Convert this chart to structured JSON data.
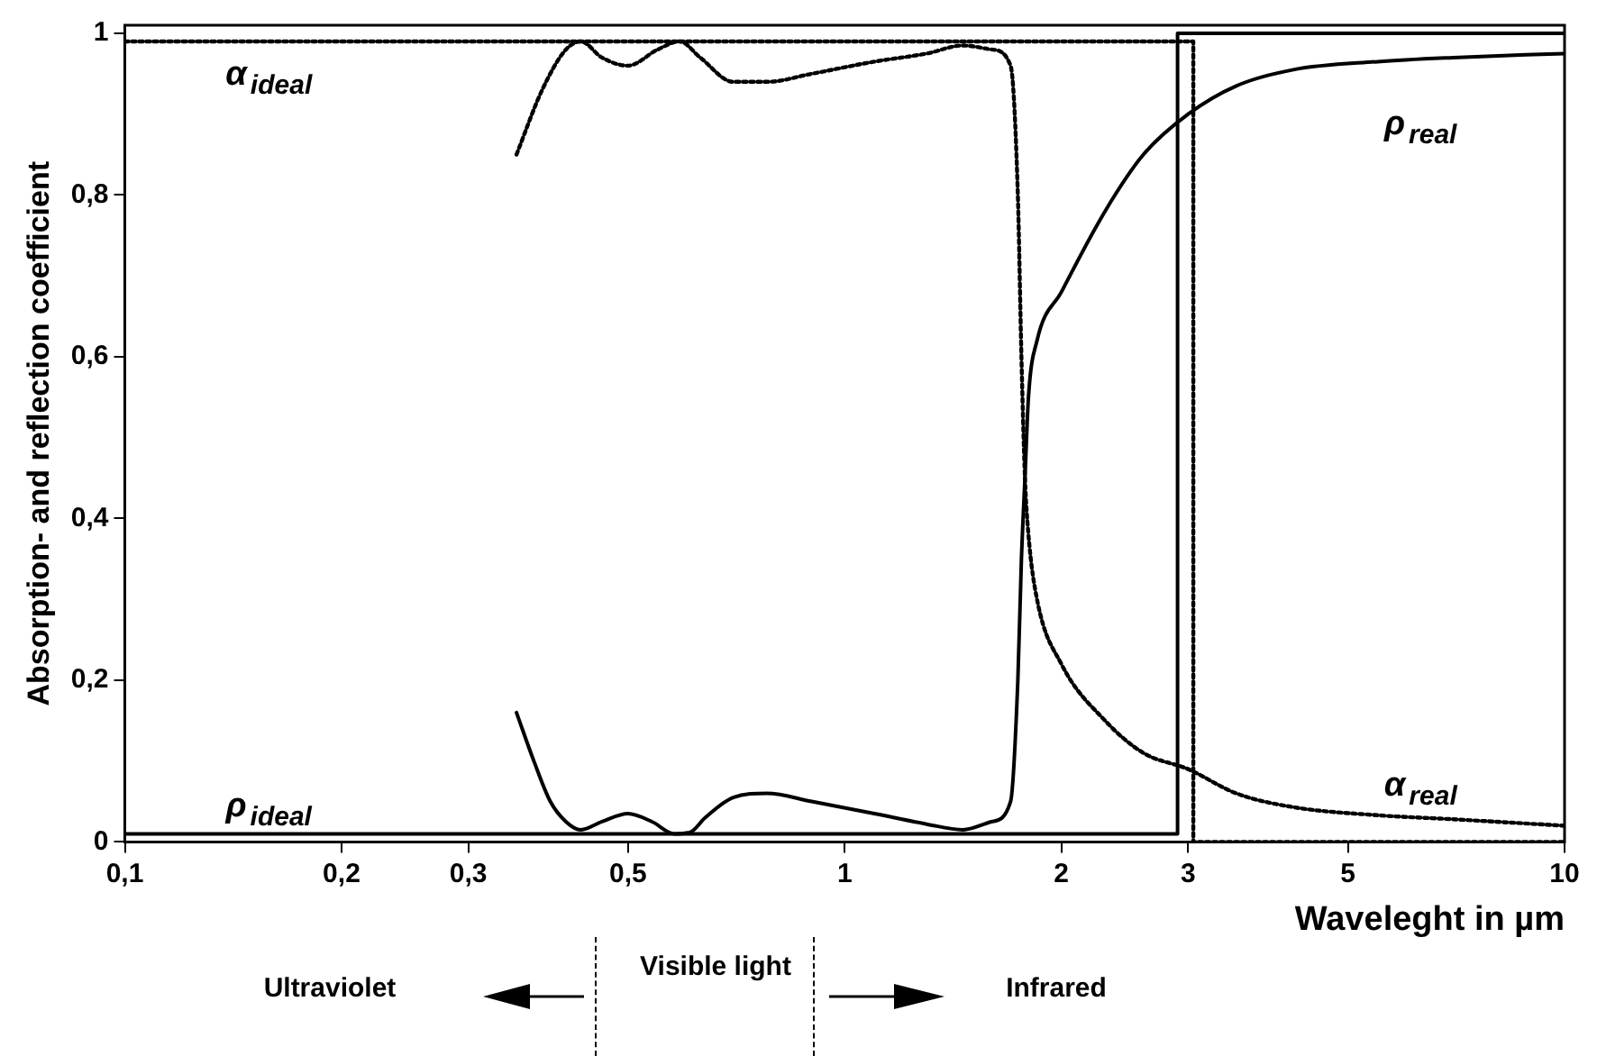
{
  "chart_data": {
    "type": "line",
    "xlabel": "Waveleght in µm",
    "ylabel": "Absorption- and reflection coefficient",
    "log": "x",
    "grid": false,
    "legend": false,
    "marker": "none",
    "xlim": [
      0.1,
      10
    ],
    "xticks": [
      {
        "value": 0.1,
        "label": "0,1"
      },
      {
        "value": 0.2,
        "label": "0,2"
      },
      {
        "value": 0.3,
        "label": "0,3"
      },
      {
        "value": 0.5,
        "label": "0,5"
      },
      1,
      2,
      3,
      5,
      10
    ],
    "ylim": [
      0,
      1.01
    ],
    "yticks": [
      0,
      {
        "value": 0.2,
        "label": "0,2"
      },
      {
        "value": 0.4,
        "label": "0,4"
      },
      {
        "value": 0.6,
        "label": "0,6"
      },
      {
        "value": 0.8,
        "label": "0,8"
      },
      1
    ],
    "series": [
      {
        "name": "α$_{ideal}$",
        "color": "#000000",
        "line_style": "dotted",
        "x": [
          0.1,
          3.05,
          3.05,
          10
        ],
        "values": [
          0.99,
          0.99,
          0,
          0
        ]
      },
      {
        "name": "ρ$_{ideal}$",
        "color": "#000000",
        "line_style": "solid",
        "x": [
          0.1,
          2.9,
          2.9,
          10
        ],
        "values": [
          0.01,
          0.01,
          1.0,
          1.0
        ]
      },
      {
        "name": "α$_{real}$",
        "color": "#000000",
        "line_style": "dotted",
        "x": [
          0.35,
          0.38,
          0.41,
          0.43,
          0.46,
          0.5,
          0.55,
          0.59,
          0.63,
          0.7,
          0.78,
          0.9,
          1.1,
          1.3,
          1.46,
          1.6,
          1.7,
          1.74,
          1.76,
          1.78,
          1.8,
          1.85,
          2.0,
          2.3,
          2.6,
          3.0,
          3.5,
          4.2,
          5.5,
          7,
          10
        ],
        "values": [
          0.85,
          0.93,
          0.98,
          0.99,
          0.97,
          0.96,
          0.98,
          0.99,
          0.97,
          0.94,
          0.94,
          0.95,
          0.965,
          0.975,
          0.985,
          0.98,
          0.96,
          0.8,
          0.6,
          0.45,
          0.38,
          0.3,
          0.22,
          0.15,
          0.11,
          0.09,
          0.06,
          0.043,
          0.033,
          0.028,
          0.02
        ]
      },
      {
        "name": "ρ$_{real}$",
        "color": "#000000",
        "line_style": "solid",
        "x": [
          0.35,
          0.37,
          0.39,
          0.41,
          0.43,
          0.46,
          0.5,
          0.54,
          0.58,
          0.61,
          0.64,
          0.7,
          0.78,
          0.9,
          1.1,
          1.3,
          1.46,
          1.6,
          1.7,
          1.74,
          1.76,
          1.78,
          1.8,
          1.85,
          2.0,
          2.3,
          2.6,
          3.0,
          3.5,
          4.2,
          5.5,
          7,
          10
        ],
        "values": [
          0.16,
          0.1,
          0.05,
          0.025,
          0.015,
          0.025,
          0.035,
          0.025,
          0.01,
          0.012,
          0.03,
          0.055,
          0.06,
          0.05,
          0.035,
          0.022,
          0.015,
          0.025,
          0.05,
          0.2,
          0.35,
          0.45,
          0.55,
          0.62,
          0.68,
          0.78,
          0.85,
          0.9,
          0.935,
          0.955,
          0.965,
          0.97,
          0.975
        ]
      }
    ],
    "annotations": [
      "Ultraviolet",
      "Visible light",
      "Infrared"
    ]
  }
}
